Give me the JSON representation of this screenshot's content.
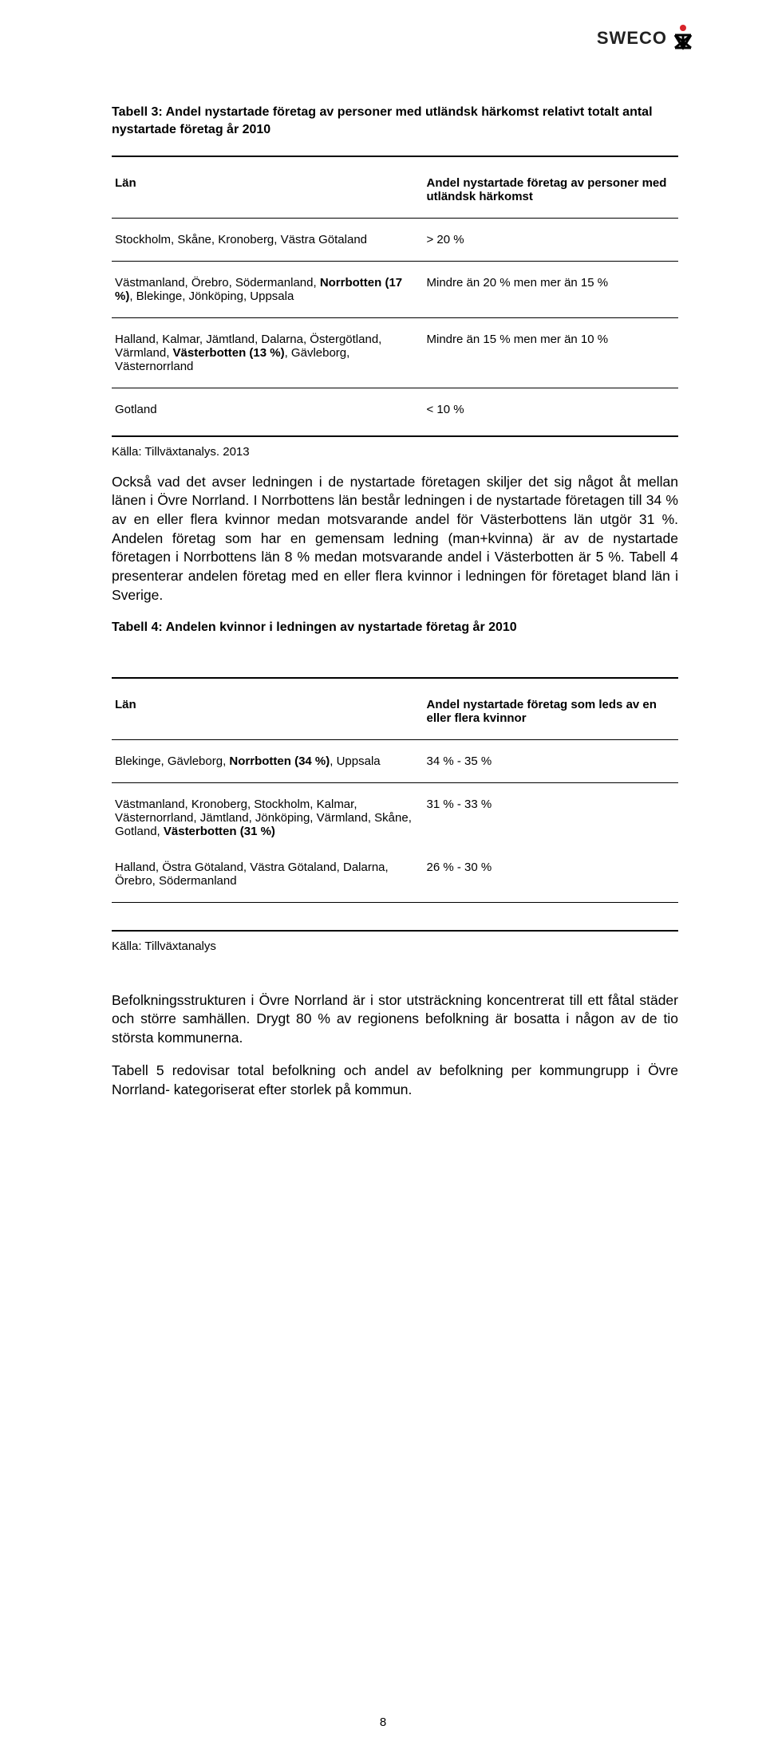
{
  "logo": {
    "text": "SWECO"
  },
  "table3": {
    "title": "Tabell 3: Andel nystartade företag av personer med utländsk härkomst relativt totalt antal nystartade företag år 2010",
    "header_left": "Län",
    "header_right": "Andel nystartade företag av personer med utländsk härkomst",
    "rows": [
      {
        "left": "Stockholm, Skåne, Kronoberg, Västra Götaland",
        "right": "> 20 %"
      },
      {
        "left": "Västmanland, Örebro, Södermanland, <b>Norrbotten (17 %)</b>, Blekinge, Jönköping, Uppsala",
        "right": "Mindre än 20 % men mer än 15 %"
      },
      {
        "left": "Halland, Kalmar, Jämtland, Dalarna, Östergötland, Värmland, <b>Västerbotten (13 %)</b>, Gävleborg, Västernorrland",
        "right": "Mindre än 15 % men mer än 10 %"
      },
      {
        "left": "Gotland",
        "right": "< 10 %"
      }
    ],
    "source": "Källa: Tillväxtanalys. 2013"
  },
  "paragraph1": "Också vad det avser ledningen i de nystartade företagen skiljer det sig något åt mellan länen i Övre Norrland. I Norrbottens län består ledningen i de nystartade företagen till 34 % av en eller flera kvinnor medan motsvarande andel för Västerbottens län utgör 31 %. Andelen företag som har en gemensam ledning (man+kvinna) är av de nystartade företagen i Norrbottens län 8 % medan motsvarande andel i Västerbotten är 5 %. Tabell 4 presenterar andelen företag med en eller flera kvinnor i ledningen för företaget bland län i Sverige.",
  "table4": {
    "title": "Tabell 4: Andelen kvinnor i ledningen av nystartade företag år 2010",
    "header_left": "Län",
    "header_right": "Andel nystartade företag som leds av en eller flera kvinnor",
    "rows": [
      {
        "left": "Blekinge, Gävleborg, <b>Norrbotten (34 %)</b>, Uppsala",
        "right": "34 % - 35 %"
      },
      {
        "left": "Västmanland, Kronoberg, Stockholm, Kalmar, Västernorrland, Jämtland, Jönköping, Värmland, Skåne, Gotland, <b>Västerbotten (31 %)</b>",
        "right": "31 % - 33 %"
      },
      {
        "left": "Halland, Östra Götaland, Västra Götaland, Dalarna, Örebro, Södermanland",
        "right": "26 % - 30 %"
      }
    ],
    "source": "Källa: Tillväxtanalys"
  },
  "paragraph2": "Befolkningsstrukturen i Övre Norrland är i stor utsträckning koncentrerat till ett fåtal städer och större samhällen. Drygt 80 % av regionens befolkning är bosatta i någon av de tio största kommunerna.",
  "paragraph3": "Tabell 5 redovisar total befolkning och andel av befolkning per kommungrupp i Övre Norrland- kategoriserat efter storlek på kommun.",
  "page_number": "8"
}
